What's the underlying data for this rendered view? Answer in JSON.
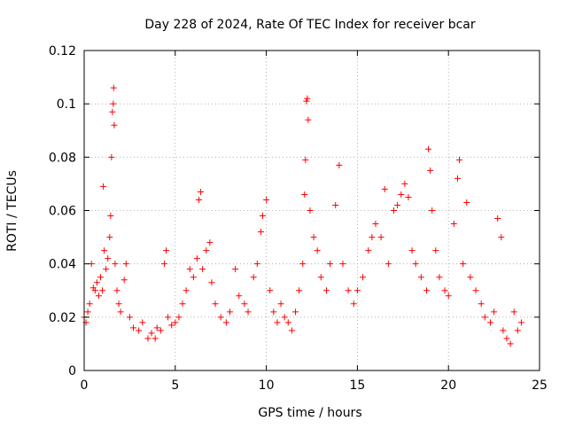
{
  "chart_data": {
    "type": "scatter",
    "title": "Day 228 of 2024, Rate Of TEC Index for receiver bcar",
    "xlabel": "GPS time / hours",
    "ylabel": "ROTI / TECUs",
    "xlim": [
      0,
      25
    ],
    "ylim": [
      0,
      0.12
    ],
    "x_ticks": [
      0,
      5,
      10,
      15,
      20,
      25
    ],
    "y_ticks": [
      0,
      0.02,
      0.04,
      0.06,
      0.08,
      0.1,
      0.12
    ],
    "x_tick_labels": [
      "0",
      "5",
      "10",
      "15",
      "20",
      "25"
    ],
    "y_tick_labels": [
      "0",
      "0.02",
      "0.04",
      "0.06",
      "0.08",
      "0.1",
      "0.12"
    ],
    "grid": true,
    "marker": "+",
    "series": [
      {
        "color": "#ff0000",
        "points": [
          [
            0.0,
            0.02
          ],
          [
            0.1,
            0.018
          ],
          [
            0.2,
            0.022
          ],
          [
            0.3,
            0.025
          ],
          [
            0.4,
            0.04
          ],
          [
            0.5,
            0.031
          ],
          [
            0.6,
            0.03
          ],
          [
            0.7,
            0.033
          ],
          [
            0.8,
            0.028
          ],
          [
            0.9,
            0.035
          ],
          [
            1.0,
            0.03
          ],
          [
            1.05,
            0.069
          ],
          [
            1.1,
            0.045
          ],
          [
            1.2,
            0.038
          ],
          [
            1.3,
            0.042
          ],
          [
            1.4,
            0.05
          ],
          [
            1.45,
            0.058
          ],
          [
            1.5,
            0.08
          ],
          [
            1.55,
            0.097
          ],
          [
            1.6,
            0.1
          ],
          [
            1.62,
            0.106
          ],
          [
            1.65,
            0.092
          ],
          [
            1.7,
            0.04
          ],
          [
            1.8,
            0.03
          ],
          [
            1.9,
            0.025
          ],
          [
            2.0,
            0.022
          ],
          [
            2.2,
            0.034
          ],
          [
            2.3,
            0.04
          ],
          [
            2.5,
            0.02
          ],
          [
            2.7,
            0.016
          ],
          [
            3.0,
            0.015
          ],
          [
            3.2,
            0.018
          ],
          [
            3.5,
            0.012
          ],
          [
            3.7,
            0.014
          ],
          [
            3.9,
            0.012
          ],
          [
            4.0,
            0.016
          ],
          [
            4.2,
            0.015
          ],
          [
            4.4,
            0.04
          ],
          [
            4.5,
            0.045
          ],
          [
            4.6,
            0.02
          ],
          [
            4.8,
            0.017
          ],
          [
            5.0,
            0.018
          ],
          [
            5.2,
            0.02
          ],
          [
            5.4,
            0.025
          ],
          [
            5.6,
            0.03
          ],
          [
            5.8,
            0.038
          ],
          [
            6.0,
            0.035
          ],
          [
            6.2,
            0.042
          ],
          [
            6.3,
            0.064
          ],
          [
            6.4,
            0.067
          ],
          [
            6.5,
            0.038
          ],
          [
            6.7,
            0.045
          ],
          [
            6.9,
            0.048
          ],
          [
            7.0,
            0.033
          ],
          [
            7.2,
            0.025
          ],
          [
            7.5,
            0.02
          ],
          [
            7.8,
            0.018
          ],
          [
            8.0,
            0.022
          ],
          [
            8.3,
            0.038
          ],
          [
            8.5,
            0.028
          ],
          [
            8.8,
            0.025
          ],
          [
            9.0,
            0.022
          ],
          [
            9.3,
            0.035
          ],
          [
            9.5,
            0.04
          ],
          [
            9.7,
            0.052
          ],
          [
            9.8,
            0.058
          ],
          [
            10.0,
            0.064
          ],
          [
            10.2,
            0.03
          ],
          [
            10.4,
            0.022
          ],
          [
            10.6,
            0.018
          ],
          [
            10.8,
            0.025
          ],
          [
            11.0,
            0.02
          ],
          [
            11.2,
            0.018
          ],
          [
            11.4,
            0.015
          ],
          [
            11.6,
            0.022
          ],
          [
            11.8,
            0.03
          ],
          [
            12.0,
            0.04
          ],
          [
            12.1,
            0.066
          ],
          [
            12.15,
            0.079
          ],
          [
            12.2,
            0.101
          ],
          [
            12.25,
            0.102
          ],
          [
            12.3,
            0.094
          ],
          [
            12.4,
            0.06
          ],
          [
            12.6,
            0.05
          ],
          [
            12.8,
            0.045
          ],
          [
            13.0,
            0.035
          ],
          [
            13.3,
            0.03
          ],
          [
            13.5,
            0.04
          ],
          [
            13.8,
            0.062
          ],
          [
            14.0,
            0.077
          ],
          [
            14.2,
            0.04
          ],
          [
            14.5,
            0.03
          ],
          [
            14.8,
            0.025
          ],
          [
            15.0,
            0.03
          ],
          [
            15.3,
            0.035
          ],
          [
            15.6,
            0.045
          ],
          [
            15.8,
            0.05
          ],
          [
            16.0,
            0.055
          ],
          [
            16.3,
            0.05
          ],
          [
            16.5,
            0.068
          ],
          [
            16.7,
            0.04
          ],
          [
            17.0,
            0.06
          ],
          [
            17.2,
            0.062
          ],
          [
            17.4,
            0.066
          ],
          [
            17.6,
            0.07
          ],
          [
            17.8,
            0.065
          ],
          [
            18.0,
            0.045
          ],
          [
            18.2,
            0.04
          ],
          [
            18.5,
            0.035
          ],
          [
            18.8,
            0.03
          ],
          [
            18.9,
            0.083
          ],
          [
            19.0,
            0.075
          ],
          [
            19.1,
            0.06
          ],
          [
            19.3,
            0.045
          ],
          [
            19.5,
            0.035
          ],
          [
            19.8,
            0.03
          ],
          [
            20.0,
            0.028
          ],
          [
            20.3,
            0.055
          ],
          [
            20.5,
            0.072
          ],
          [
            20.6,
            0.079
          ],
          [
            20.8,
            0.04
          ],
          [
            21.0,
            0.063
          ],
          [
            21.2,
            0.035
          ],
          [
            21.5,
            0.03
          ],
          [
            21.8,
            0.025
          ],
          [
            22.0,
            0.02
          ],
          [
            22.3,
            0.018
          ],
          [
            22.5,
            0.022
          ],
          [
            22.7,
            0.057
          ],
          [
            22.9,
            0.05
          ],
          [
            23.0,
            0.015
          ],
          [
            23.2,
            0.012
          ],
          [
            23.4,
            0.01
          ],
          [
            23.6,
            0.022
          ],
          [
            23.8,
            0.015
          ],
          [
            24.0,
            0.018
          ]
        ]
      }
    ]
  }
}
